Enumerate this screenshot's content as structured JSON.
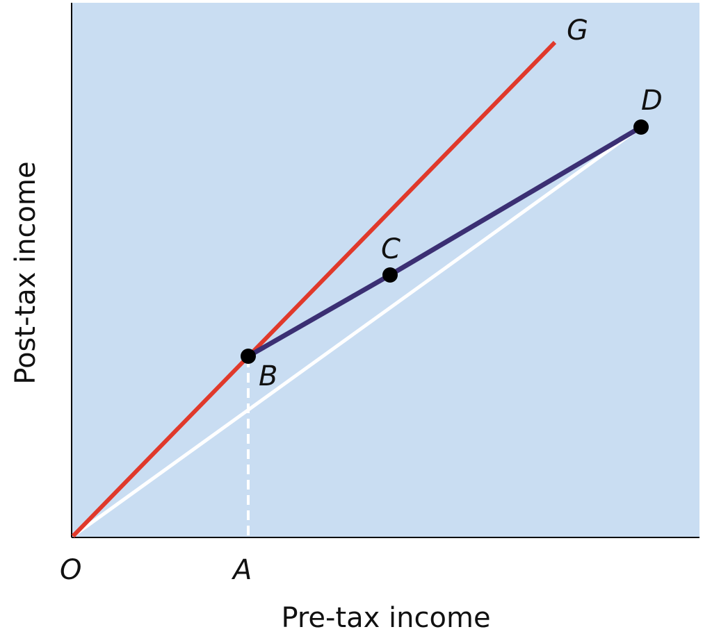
{
  "diagram": {
    "x_axis_title": "Pre-tax income",
    "y_axis_title": "Post-tax income",
    "origin_label": "O",
    "tick_label_A": "A",
    "points": {
      "B": "B",
      "C": "C",
      "D": "D",
      "G": "G"
    },
    "colors": {
      "background": "#c9ddf2",
      "line_45deg": "#e0392b",
      "line_tax_schedule": "#3b2f73",
      "line_flat": "#ffffff",
      "point": "#000000"
    }
  }
}
